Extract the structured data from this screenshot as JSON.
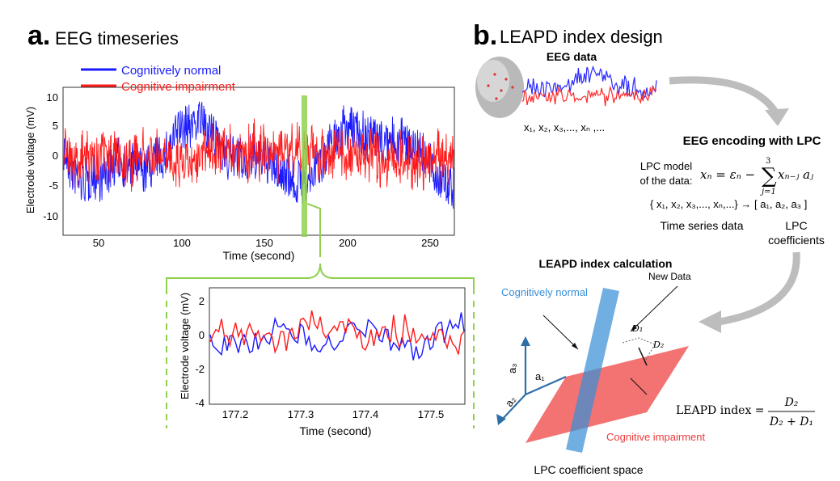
{
  "panel_a": {
    "letter": "a.",
    "title": "EEG timeseries",
    "legend": [
      {
        "label": "Cognitively normal",
        "color": "#1a1aff"
      },
      {
        "label": "Cognitive impairment",
        "color": "#ff1a1a"
      }
    ],
    "main_plot": {
      "ylabel": "Electrode voltage (mV)",
      "xlabel": "Time (second)",
      "xticks": [
        "50",
        "100",
        "150",
        "200",
        "250"
      ],
      "yticks": [
        "10",
        "5",
        "0",
        "-5",
        "-10"
      ]
    },
    "zoom_plot": {
      "ylabel": "Electrode voltage (mV)",
      "xlabel": "Time (second)",
      "xticks": [
        "177.2",
        "177.3",
        "177.4",
        "177.5"
      ],
      "yticks": [
        "2",
        "0",
        "-2",
        "-4"
      ]
    },
    "highlight_color": "#8fd14f"
  },
  "panel_b": {
    "letter": "b.",
    "title": "LEAPD index design",
    "eeg_data_label": "EEG data",
    "sequence": "x₁, x₂, x₃,..., xₙ ,...",
    "encoding_title": "EEG encoding with LPC",
    "lpc_model_line1": "LPC model",
    "lpc_model_line2": "of the data:",
    "mapping": "{ x₁, x₂, x₃,..., xₙ,...} → [ a₁, a₂, a₃ ]",
    "time_series_label": "Time series data",
    "lpc_coeff_line1": "LPC",
    "lpc_coeff_line2": "coefficients",
    "calc_title": "LEAPD index calculation",
    "normal_label": "Cognitively normal",
    "impair_label": "Cognitive impairment",
    "new_data_label": "New Data",
    "d1": "D₁",
    "d2": "D₂",
    "axis_a1": "a₁",
    "axis_a2": "a₂",
    "axis_a3": "a₃",
    "leapd_label": "LEAPD index =",
    "space_label": "LPC coefficient space",
    "colors": {
      "normal": "#3a8fd6",
      "impair": "#ee3b3b",
      "arrow": "#bdbdbd",
      "axis": "#2f6fa8"
    }
  }
}
